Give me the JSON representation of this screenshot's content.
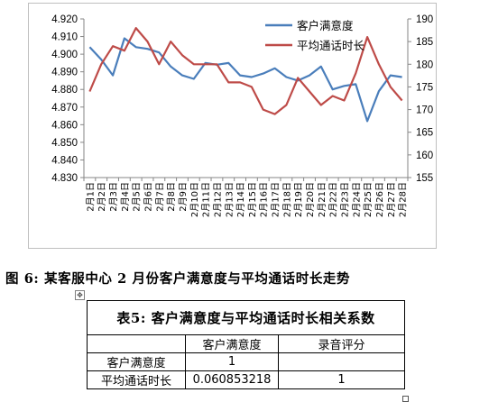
{
  "chart_data": {
    "type": "line",
    "categories": [
      "2月1日",
      "2月2日",
      "2月3日",
      "2月4日",
      "2月5日",
      "2月6日",
      "2月7日",
      "2月8日",
      "2月9日",
      "2月10日",
      "2月11日",
      "2月12日",
      "2月13日",
      "2月14日",
      "2月15日",
      "2月16日",
      "2月17日",
      "2月18日",
      "2月19日",
      "2月20日",
      "2月21日",
      "2月22日",
      "2月23日",
      "2月24日",
      "2月25日",
      "2月26日",
      "2月27日",
      "2月28日"
    ],
    "series": [
      {
        "name": "客户满意度",
        "axis": "left",
        "color": "#4a7ebb",
        "values": [
          4.904,
          4.897,
          4.888,
          4.909,
          4.904,
          4.903,
          4.901,
          4.893,
          4.888,
          4.886,
          4.895,
          4.894,
          4.895,
          4.888,
          4.887,
          4.889,
          4.892,
          4.887,
          4.885,
          4.888,
          4.893,
          4.88,
          4.882,
          4.883,
          4.862,
          4.879,
          4.888,
          4.887
        ]
      },
      {
        "name": "平均通话时长",
        "axis": "right",
        "color": "#be4b48",
        "values": [
          174,
          180,
          184,
          183,
          188,
          185,
          180,
          185,
          182,
          180,
          180,
          180,
          176,
          176,
          175,
          170,
          169,
          171,
          177,
          174,
          171,
          173,
          172,
          178,
          186,
          180,
          175,
          172
        ]
      }
    ],
    "left_axis": {
      "min": 4.83,
      "max": 4.92,
      "step": 0.01,
      "ticks": [
        "4.830",
        "4.840",
        "4.850",
        "4.860",
        "4.870",
        "4.880",
        "4.890",
        "4.900",
        "4.910",
        "4.920"
      ]
    },
    "right_axis": {
      "min": 155,
      "max": 190,
      "step": 5,
      "ticks": [
        "155",
        "160",
        "165",
        "170",
        "175",
        "180",
        "185",
        "190"
      ]
    },
    "legend_position": "top-right",
    "grid": false
  },
  "figure_caption": "图 6:  某客服中心 2 月份客户满意度与平均通话时长走势",
  "table": {
    "title": "表5: 客户满意度与平均通话时长相关系数",
    "headers": [
      "",
      "客户满意度",
      "录音评分"
    ],
    "rows": [
      {
        "label": "客户满意度",
        "c1": "1",
        "c2": ""
      },
      {
        "label": "平均通话时长",
        "c1": "0.060853218",
        "c2": "1"
      }
    ]
  },
  "icons": {
    "move_handle": "move-handle-icon",
    "end_mark": "table-end-marker"
  }
}
